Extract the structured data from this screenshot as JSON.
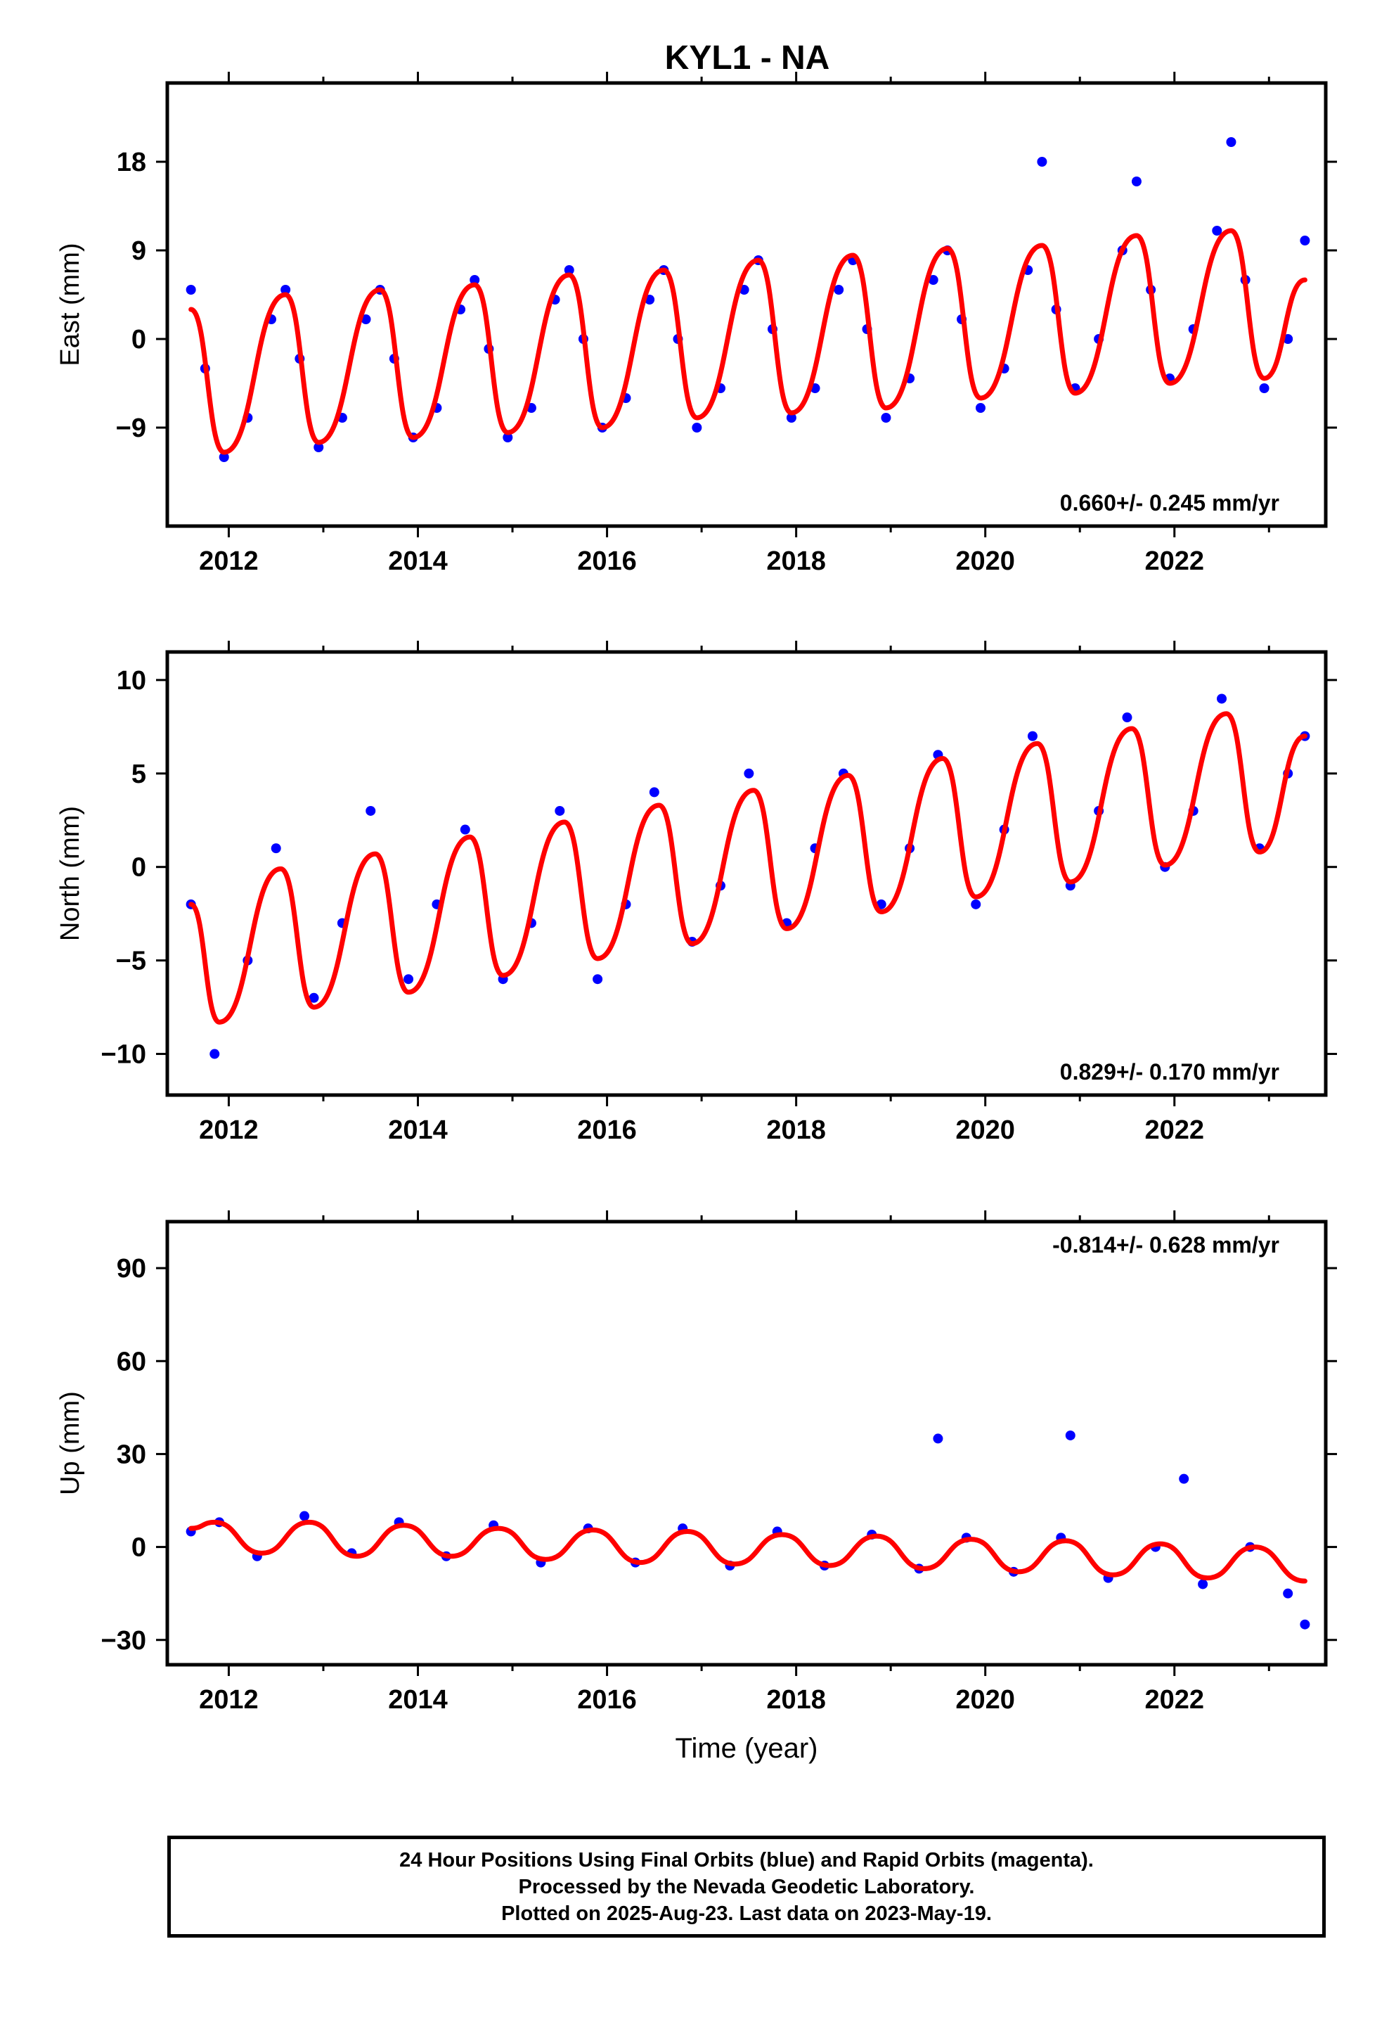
{
  "title": "KYL1 - NA",
  "colors": {
    "data": "#0000ff",
    "model": "#ff0000",
    "frame": "#000000"
  },
  "caption": {
    "line1": "24 Hour Positions Using Final Orbits (blue) and Rapid Orbits (magenta).",
    "line2": "Processed by the Nevada Geodetic Laboratory.",
    "line3": "Plotted on 2025-Aug-23. Last data on 2023-May-19."
  },
  "chart_data": [
    {
      "type": "scatter",
      "panel": "east",
      "ylabel": "East (mm)",
      "xlabel": "",
      "xlim": [
        2011.35,
        2023.6
      ],
      "ylim": [
        -19,
        26
      ],
      "xticks": [
        2012,
        2014,
        2016,
        2018,
        2020,
        2022
      ],
      "yticks": [
        -9,
        0,
        9,
        18
      ],
      "rate_label": "0.660+/- 0.245 mm/yr",
      "rate_label_position": "bottom-right",
      "series": [
        {
          "role": "daily positions",
          "marker": "dot",
          "x": [
            2011.6,
            2011.75,
            2011.95,
            2012.2,
            2012.45,
            2012.6,
            2012.75,
            2012.95,
            2013.2,
            2013.45,
            2013.6,
            2013.75,
            2013.95,
            2014.2,
            2014.45,
            2014.6,
            2014.75,
            2014.95,
            2015.2,
            2015.45,
            2015.6,
            2015.75,
            2015.95,
            2016.2,
            2016.45,
            2016.6,
            2016.75,
            2016.95,
            2017.2,
            2017.45,
            2017.6,
            2017.75,
            2017.95,
            2018.2,
            2018.45,
            2018.6,
            2018.75,
            2018.95,
            2019.2,
            2019.45,
            2019.6,
            2019.75,
            2019.95,
            2020.2,
            2020.45,
            2020.6,
            2020.75,
            2020.95,
            2021.2,
            2021.45,
            2021.6,
            2021.75,
            2021.95,
            2022.2,
            2022.45,
            2022.6,
            2022.75,
            2022.95,
            2023.2,
            2023.38
          ],
          "y": [
            5,
            -3,
            -12,
            -8,
            2,
            5,
            -2,
            -11,
            -8,
            2,
            5,
            -2,
            -10,
            -7,
            3,
            6,
            -1,
            -10,
            -7,
            4,
            7,
            0,
            -9,
            -6,
            4,
            7,
            0,
            -9,
            -5,
            5,
            8,
            1,
            -8,
            -5,
            5,
            8,
            1,
            -8,
            -4,
            6,
            9,
            2,
            -7,
            -3,
            7,
            18,
            3,
            -5,
            0,
            9,
            16,
            5,
            -4,
            1,
            11,
            20,
            6,
            -5,
            0,
            10
          ]
        },
        {
          "role": "model fit",
          "marker": "line",
          "x": [
            2011.6,
            2011.95,
            2012.6,
            2012.95,
            2013.6,
            2013.95,
            2014.6,
            2014.95,
            2015.6,
            2015.95,
            2016.6,
            2016.95,
            2017.6,
            2017.95,
            2018.6,
            2018.95,
            2019.6,
            2019.95,
            2020.6,
            2020.95,
            2021.6,
            2021.95,
            2022.6,
            2022.95,
            2023.38
          ],
          "y": [
            3,
            -11.5,
            4.5,
            -10.5,
            5,
            -10,
            5.5,
            -9.5,
            6.5,
            -9,
            7,
            -8,
            8,
            -7.5,
            8.5,
            -7,
            9.2,
            -6,
            9.5,
            -5.5,
            10.5,
            -4.5,
            11,
            -4,
            6
          ]
        }
      ]
    },
    {
      "type": "scatter",
      "panel": "north",
      "ylabel": "North (mm)",
      "xlabel": "",
      "xlim": [
        2011.35,
        2023.6
      ],
      "ylim": [
        -12.2,
        11.5
      ],
      "xticks": [
        2012,
        2014,
        2016,
        2018,
        2020,
        2022
      ],
      "yticks": [
        -10,
        -5,
        0,
        5,
        10
      ],
      "rate_label": "0.829+/- 0.170 mm/yr",
      "rate_label_position": "bottom-right",
      "series": [
        {
          "role": "daily positions",
          "marker": "dot",
          "x": [
            2011.6,
            2011.85,
            2012.2,
            2012.5,
            2012.9,
            2013.2,
            2013.5,
            2013.9,
            2014.2,
            2014.5,
            2014.9,
            2015.2,
            2015.5,
            2015.9,
            2016.2,
            2016.5,
            2016.9,
            2017.2,
            2017.5,
            2017.9,
            2018.2,
            2018.5,
            2018.9,
            2019.2,
            2019.5,
            2019.9,
            2020.2,
            2020.5,
            2020.9,
            2021.2,
            2021.5,
            2021.9,
            2022.2,
            2022.5,
            2022.9,
            2023.2,
            2023.38
          ],
          "y": [
            -2,
            -10,
            -5,
            1,
            -7,
            -3,
            3,
            -6,
            -2,
            2,
            -6,
            -3,
            3,
            -6,
            -2,
            4,
            -4,
            -1,
            5,
            -3,
            1,
            5,
            -2,
            1,
            6,
            -2,
            2,
            7,
            -1,
            3,
            8,
            0,
            3,
            9,
            1,
            5,
            7
          ]
        },
        {
          "role": "model fit",
          "marker": "line",
          "x": [
            2011.6,
            2011.9,
            2012.55,
            2012.9,
            2013.55,
            2013.9,
            2014.55,
            2014.9,
            2015.55,
            2015.9,
            2016.55,
            2016.9,
            2017.55,
            2017.9,
            2018.55,
            2018.9,
            2019.55,
            2019.9,
            2020.55,
            2020.9,
            2021.55,
            2021.9,
            2022.55,
            2022.9,
            2023.38
          ],
          "y": [
            -2,
            -8.3,
            -0.1,
            -7.5,
            0.7,
            -6.7,
            1.6,
            -5.8,
            2.4,
            -4.9,
            3.3,
            -4.1,
            4.1,
            -3.3,
            4.9,
            -2.4,
            5.8,
            -1.6,
            6.6,
            -0.8,
            7.4,
            0.1,
            8.2,
            0.8,
            7
          ]
        }
      ]
    },
    {
      "type": "scatter",
      "panel": "up",
      "ylabel": "Up (mm)",
      "xlabel": "Time (year)",
      "xlim": [
        2011.35,
        2023.6
      ],
      "ylim": [
        -38,
        105
      ],
      "xticks": [
        2012,
        2014,
        2016,
        2018,
        2020,
        2022
      ],
      "yticks": [
        -30,
        0,
        30,
        60,
        90
      ],
      "rate_label": "-0.814+/- 0.628 mm/yr",
      "rate_label_position": "top-right",
      "series": [
        {
          "role": "daily positions",
          "marker": "dot",
          "x": [
            2011.6,
            2011.9,
            2012.3,
            2012.8,
            2013.3,
            2013.8,
            2014.3,
            2014.8,
            2015.3,
            2015.8,
            2016.3,
            2016.8,
            2017.3,
            2017.8,
            2018.3,
            2018.8,
            2019.3,
            2019.5,
            2019.8,
            2020.3,
            2020.8,
            2020.9,
            2021.3,
            2021.8,
            2022.1,
            2022.3,
            2022.8,
            2023.2,
            2023.38
          ],
          "y": [
            5,
            8,
            -3,
            10,
            -2,
            8,
            -3,
            7,
            -5,
            6,
            -5,
            6,
            -6,
            5,
            -6,
            4,
            -7,
            35,
            3,
            -8,
            3,
            36,
            -10,
            0,
            22,
            -12,
            0,
            -15,
            -25
          ]
        },
        {
          "role": "model fit",
          "marker": "line",
          "x": [
            2011.6,
            2011.85,
            2012.35,
            2012.85,
            2013.35,
            2013.85,
            2014.35,
            2014.85,
            2015.35,
            2015.85,
            2016.35,
            2016.85,
            2017.35,
            2017.85,
            2018.35,
            2018.85,
            2019.35,
            2019.85,
            2020.35,
            2020.85,
            2021.35,
            2021.85,
            2022.35,
            2022.85,
            2023.38
          ],
          "y": [
            6,
            8,
            -2,
            8,
            -3,
            7,
            -3,
            6,
            -4,
            5.5,
            -5,
            5,
            -5.5,
            4,
            -6,
            3.5,
            -7,
            2.5,
            -8,
            2,
            -9,
            1,
            -10,
            0,
            -11
          ]
        }
      ]
    }
  ]
}
